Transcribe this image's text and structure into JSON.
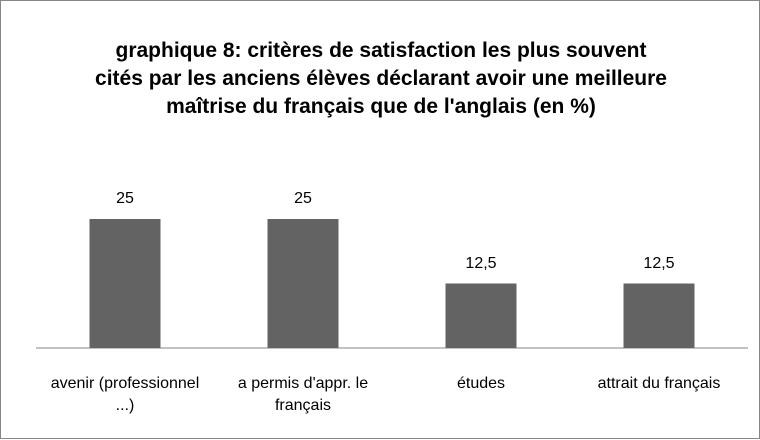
{
  "chart_data": {
    "type": "bar",
    "title": "graphique 8: critères de satisfaction les plus souvent cités par les anciens élèves déclarant avoir une meilleure maîtrise du français que de l'anglais (en %)",
    "categories": [
      "avenir (professionnel ...)",
      "a permis d'appr. le français",
      "études",
      "attrait du français"
    ],
    "values": [
      25,
      25,
      12.5,
      12.5
    ],
    "value_labels": [
      "25",
      "25",
      "12,5",
      "12,5"
    ],
    "color": "#636363"
  }
}
